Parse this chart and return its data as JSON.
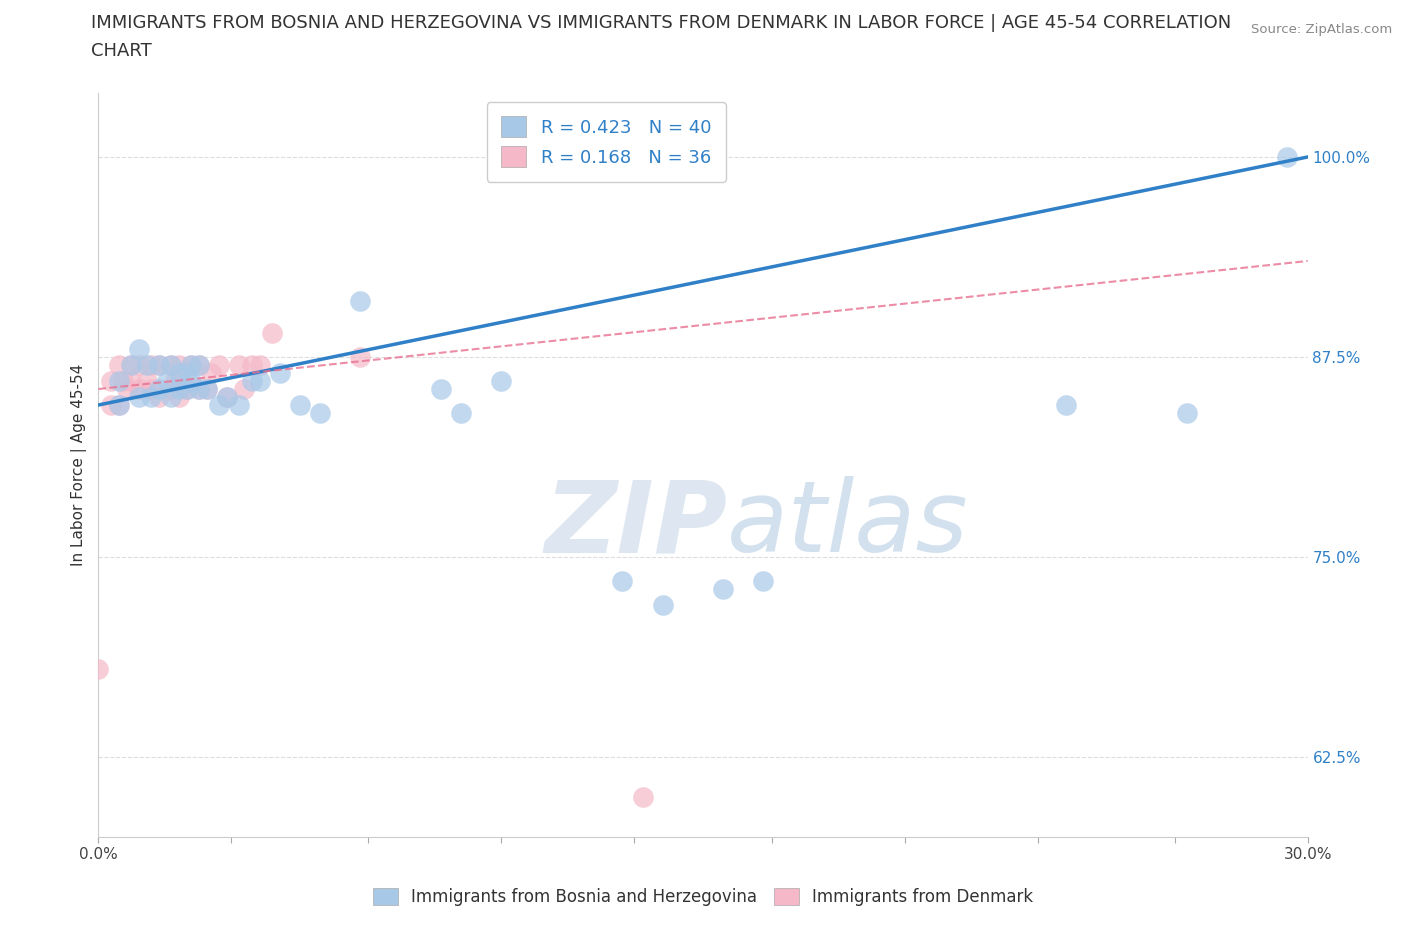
{
  "title_line1": "IMMIGRANTS FROM BOSNIA AND HERZEGOVINA VS IMMIGRANTS FROM DENMARK IN LABOR FORCE | AGE 45-54 CORRELATION",
  "title_line2": "CHART",
  "source_text": "Source: ZipAtlas.com",
  "ylabel": "In Labor Force | Age 45-54",
  "xlim": [
    0.0,
    0.3
  ],
  "ylim": [
    0.575,
    1.04
  ],
  "ytick_labels": [
    "62.5%",
    "75.0%",
    "87.5%",
    "100.0%"
  ],
  "ytick_values": [
    0.625,
    0.75,
    0.875,
    1.0
  ],
  "xtick_labels": [
    "0.0%",
    "",
    "",
    "",
    "",
    "",
    "",
    "",
    "",
    "30.0%"
  ],
  "xtick_values": [
    0.0,
    0.033,
    0.067,
    0.1,
    0.133,
    0.167,
    0.2,
    0.233,
    0.267,
    0.3
  ],
  "watermark_zip": "ZIP",
  "watermark_atlas": "atlas",
  "legend_blue_label": "Immigrants from Bosnia and Herzegovina",
  "legend_pink_label": "Immigrants from Denmark",
  "R_blue": "0.423",
  "N_blue": "40",
  "R_pink": "0.168",
  "N_pink": "36",
  "blue_color": "#a8c8e8",
  "pink_color": "#f4b8c8",
  "blue_fill_color": "#a8c8e8",
  "pink_fill_color": "#f4b8c8",
  "blue_line_color": "#3080c8",
  "pink_line_color": "#e87090",
  "blue_scatter_x": [
    0.005,
    0.005,
    0.008,
    0.01,
    0.01,
    0.012,
    0.013,
    0.015,
    0.015,
    0.017,
    0.018,
    0.018,
    0.02,
    0.02,
    0.022,
    0.022,
    0.023,
    0.023,
    0.025,
    0.025,
    0.027,
    0.03,
    0.032,
    0.035,
    0.038,
    0.04,
    0.045,
    0.05,
    0.055,
    0.065,
    0.085,
    0.09,
    0.1,
    0.13,
    0.14,
    0.155,
    0.165,
    0.24,
    0.27,
    0.295
  ],
  "blue_scatter_y": [
    0.845,
    0.86,
    0.87,
    0.85,
    0.88,
    0.87,
    0.85,
    0.855,
    0.87,
    0.86,
    0.85,
    0.87,
    0.855,
    0.865,
    0.855,
    0.865,
    0.86,
    0.87,
    0.855,
    0.87,
    0.855,
    0.845,
    0.85,
    0.845,
    0.86,
    0.86,
    0.865,
    0.845,
    0.84,
    0.91,
    0.855,
    0.84,
    0.86,
    0.735,
    0.72,
    0.73,
    0.735,
    0.845,
    0.84,
    1.0
  ],
  "pink_scatter_x": [
    0.0,
    0.003,
    0.003,
    0.005,
    0.005,
    0.006,
    0.007,
    0.008,
    0.008,
    0.01,
    0.01,
    0.012,
    0.013,
    0.013,
    0.015,
    0.015,
    0.018,
    0.018,
    0.019,
    0.02,
    0.02,
    0.022,
    0.023,
    0.025,
    0.025,
    0.027,
    0.028,
    0.03,
    0.032,
    0.035,
    0.036,
    0.038,
    0.04,
    0.043,
    0.065,
    0.135
  ],
  "pink_scatter_y": [
    0.68,
    0.845,
    0.86,
    0.845,
    0.87,
    0.86,
    0.855,
    0.86,
    0.87,
    0.855,
    0.87,
    0.86,
    0.855,
    0.87,
    0.85,
    0.87,
    0.855,
    0.87,
    0.86,
    0.85,
    0.87,
    0.855,
    0.87,
    0.855,
    0.87,
    0.855,
    0.865,
    0.87,
    0.85,
    0.87,
    0.855,
    0.87,
    0.87,
    0.89,
    0.875,
    0.6
  ],
  "blue_line_x": [
    0.0,
    0.3
  ],
  "blue_line_y": [
    0.845,
    1.0
  ],
  "pink_line_x": [
    0.0,
    0.3
  ],
  "pink_line_y": [
    0.855,
    0.935
  ],
  "grid_color": "#dddddd",
  "grid_style": "--",
  "background_color": "#ffffff",
  "title_fontsize": 13,
  "axis_label_fontsize": 11,
  "tick_fontsize": 11,
  "legend_fontsize": 12,
  "legend_inner_fontsize": 13
}
